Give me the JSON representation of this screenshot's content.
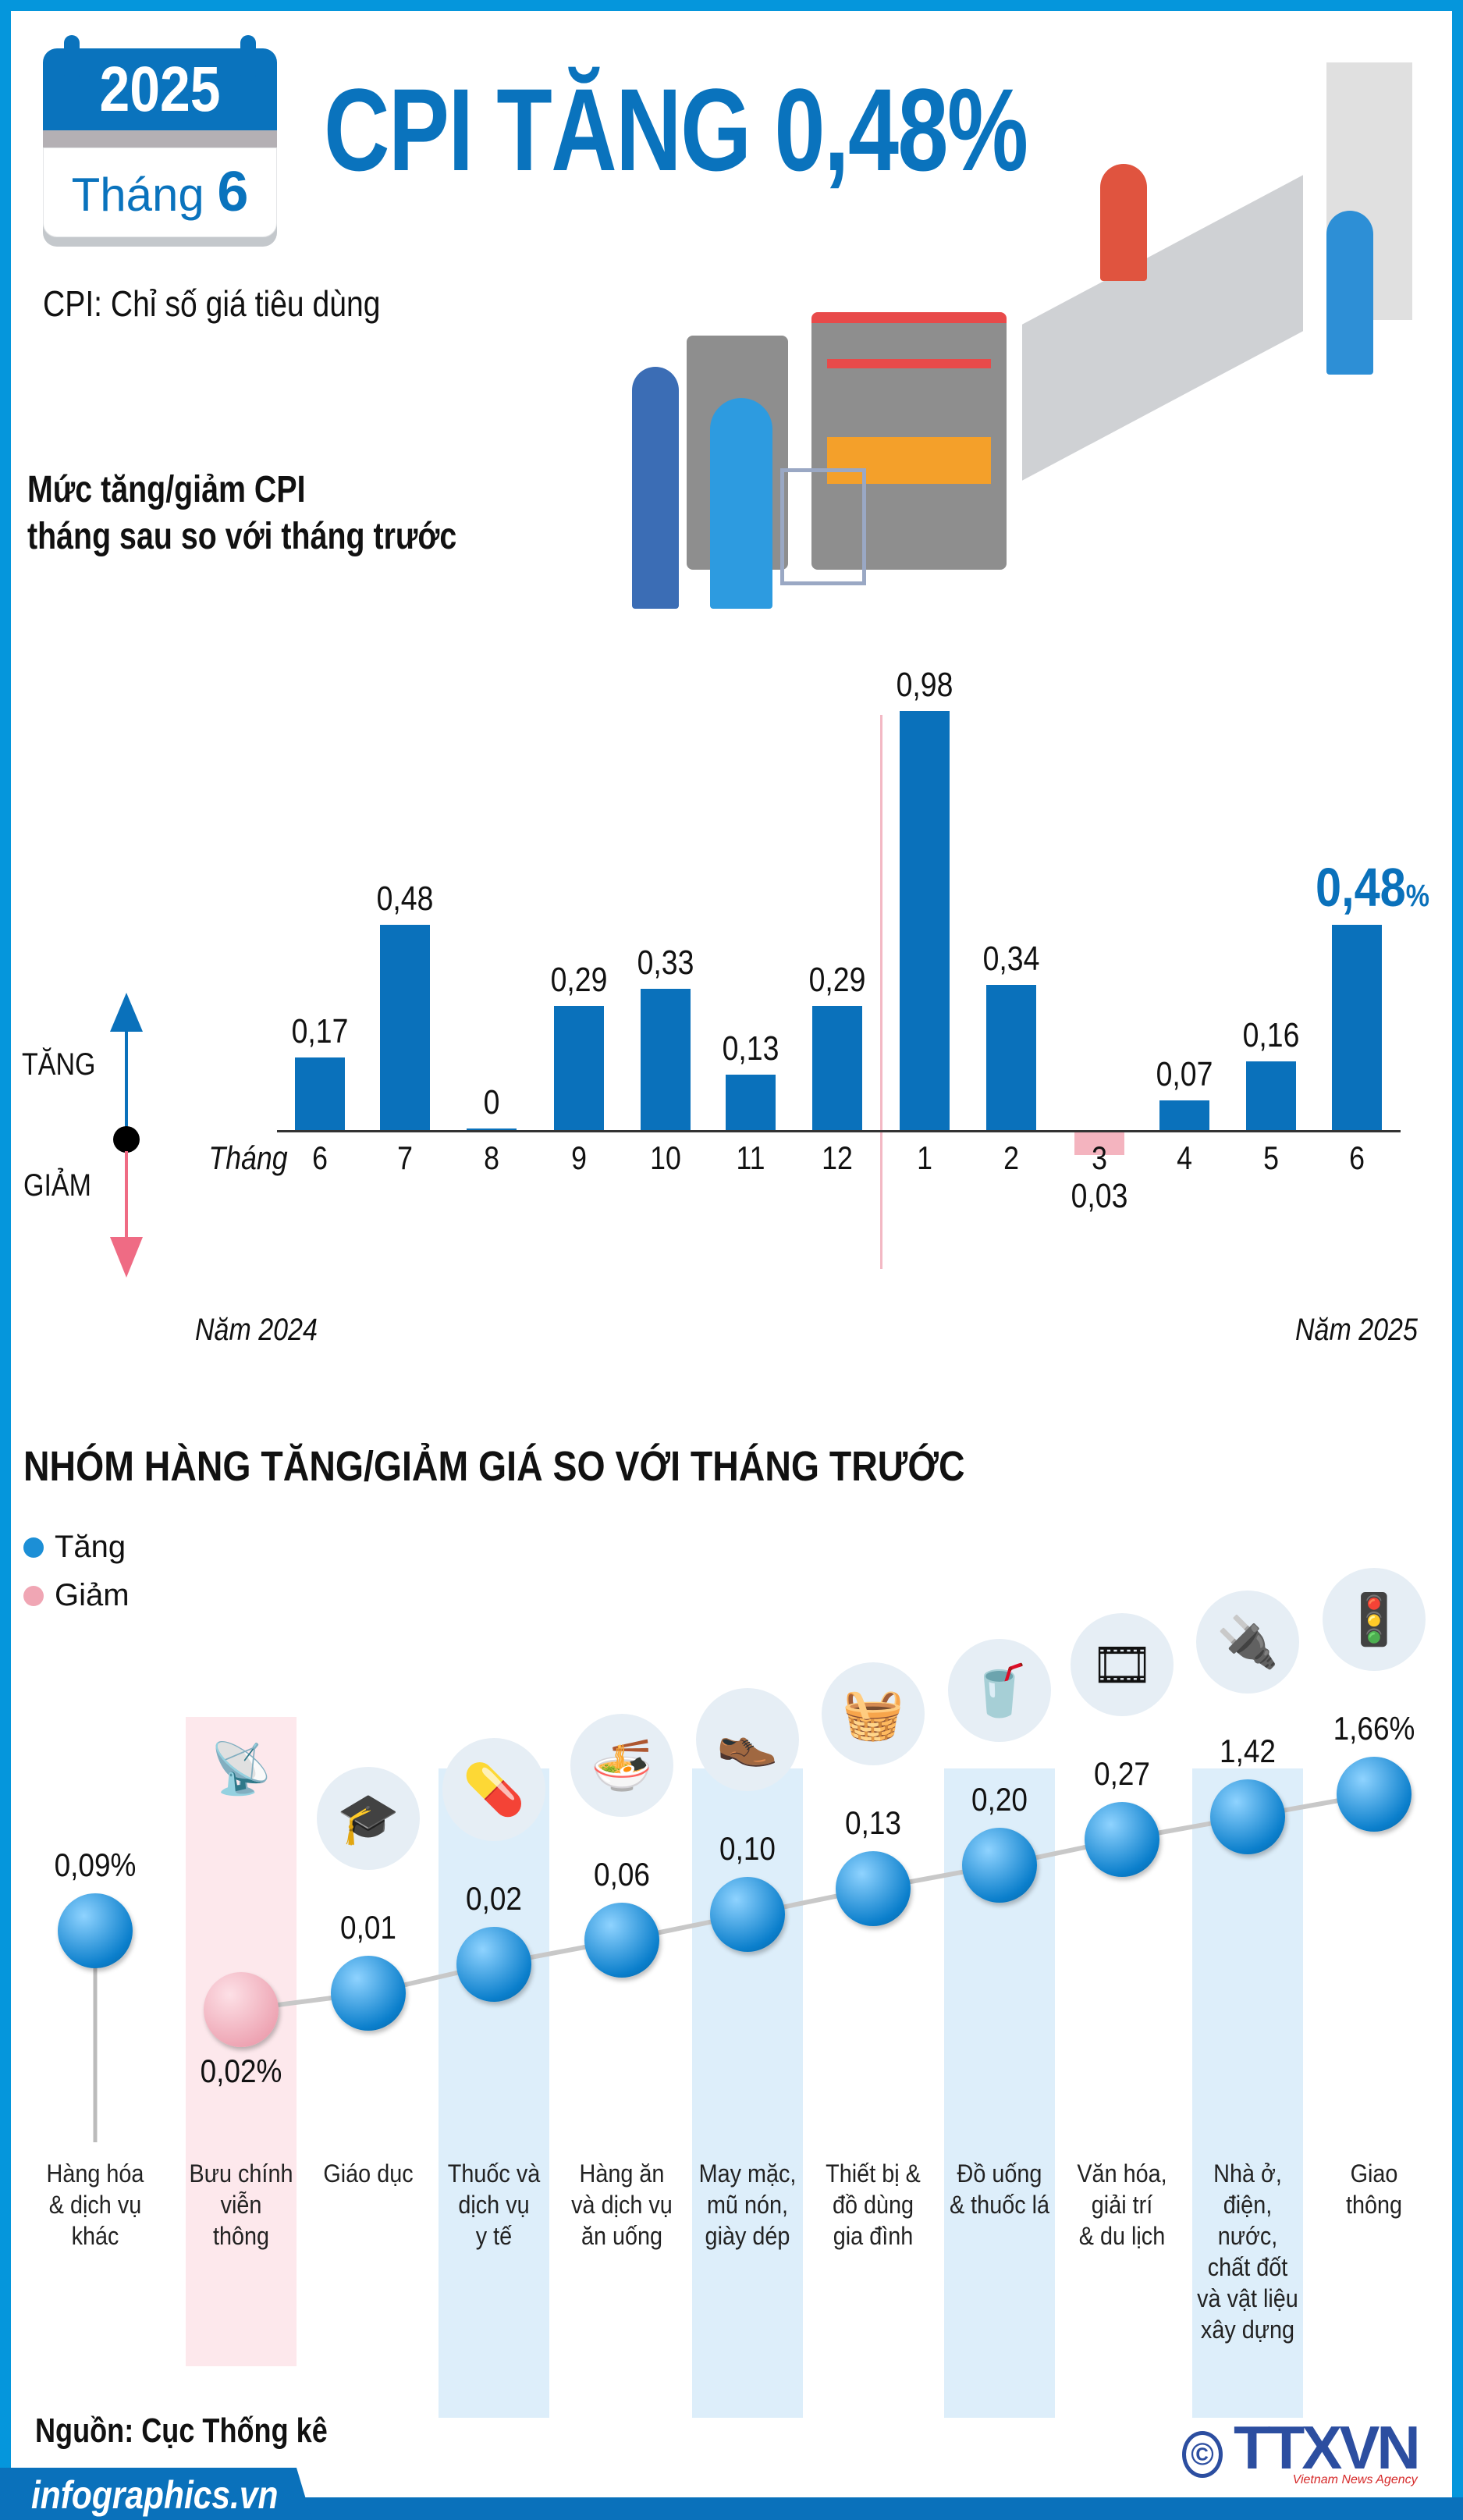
{
  "header": {
    "year": "2025",
    "month_label": "Tháng",
    "month": "6",
    "title": "CPI TĂNG 0,48%",
    "subtitle": "CPI: Chỉ số giá tiêu dùng"
  },
  "section1": {
    "heading_line1": "Mức tăng/giảm CPI",
    "heading_line2": "tháng sau so với tháng trước",
    "up_label": "TĂNG",
    "down_label": "GIẢM",
    "month_prefix": "Tháng",
    "year_left": "Năm 2024",
    "year_right": "Năm 2025",
    "highlight_percent": "%"
  },
  "chart_data": [
    {
      "type": "bar",
      "title": "Mức tăng/giảm CPI tháng sau so với tháng trước",
      "categories": [
        "6",
        "7",
        "8",
        "9",
        "10",
        "11",
        "12",
        "1",
        "2",
        "3",
        "4",
        "5",
        "6"
      ],
      "values": [
        0.17,
        0.48,
        0,
        0.29,
        0.33,
        0.13,
        0.29,
        0.98,
        0.34,
        -0.03,
        0.07,
        0.16,
        0.48
      ],
      "labels": [
        "0,17",
        "0,48",
        "0",
        "0,29",
        "0,33",
        "0,13",
        "0,29",
        "0,98",
        "0,34",
        "0,03",
        "0,07",
        "0,16",
        "0,48"
      ],
      "colors": {
        "increase": "#0a71bb",
        "decrease": "#f4b4bf",
        "highlight": "#0a71bb"
      }
    },
    {
      "type": "scatter",
      "title": "NHÓM HÀNG TĂNG/GIẢM GIÁ SO VỚI THÁNG TRƯỚC",
      "legend": [
        {
          "label": "Tăng",
          "color": "#1c8fd6"
        },
        {
          "label": "Giảm",
          "color": "#f0a6b4"
        }
      ],
      "categories": [
        "Hàng hóa & dịch vụ khác",
        "Bưu chính viễn thông",
        "Giáo dục",
        "Thuốc và dịch vụ y tế",
        "Hàng ăn và dịch vụ ăn uống",
        "May mặc, mũ nón, giày dép",
        "Thiết bị & đồ dùng gia đình",
        "Đồ uống & thuốc lá",
        "Văn hóa, giải trí & du lịch",
        "Nhà ở, điện, nước, chất đốt và vật liệu xây dựng",
        "Giao thông"
      ],
      "category_lines": [
        [
          "Hàng hóa",
          "& dịch vụ",
          "khác"
        ],
        [
          "Bưu chính",
          "viễn",
          "thông"
        ],
        [
          "Giáo dục"
        ],
        [
          "Thuốc và",
          "dịch vụ",
          "y tế"
        ],
        [
          "Hàng ăn",
          "và dịch vụ",
          "ăn uống"
        ],
        [
          "May mặc,",
          "mũ nón,",
          "giày dép"
        ],
        [
          "Thiết bị &",
          "đồ dùng",
          "gia đình"
        ],
        [
          "Đồ uống",
          "& thuốc lá"
        ],
        [
          "Văn hóa,",
          "giải trí",
          "& du lịch"
        ],
        [
          "Nhà ở,",
          "điện,",
          "nước,",
          "chất đốt",
          "và vật liệu",
          "xây dựng"
        ],
        [
          "Giao",
          "thông"
        ]
      ],
      "values": [
        0.09,
        -0.02,
        0.01,
        0.02,
        0.06,
        0.1,
        0.13,
        0.2,
        0.27,
        1.42,
        1.66
      ],
      "labels": [
        "0,09%",
        "0,02%",
        "0,01",
        "0,02",
        "0,06",
        "0,10",
        "0,13",
        "0,20",
        "0,27",
        "1,42",
        "1,66%"
      ],
      "icons": [
        "none",
        "radio-tower-icon",
        "graduation-cap-icon",
        "pill-icon",
        "food-bowl-icon",
        "shoe-shirt-icon",
        "washing-machine-icon",
        "drink-cigarette-icon",
        "film-reel-icon",
        "plug-faucet-icon",
        "traffic-light-icon"
      ]
    }
  ],
  "footer": {
    "source": "Nguồn: Cục Thống kê",
    "site": "infographics.vn",
    "logo": "TTXVN",
    "logo_sub": "Vietnam News Agency",
    "copyright": "©"
  }
}
